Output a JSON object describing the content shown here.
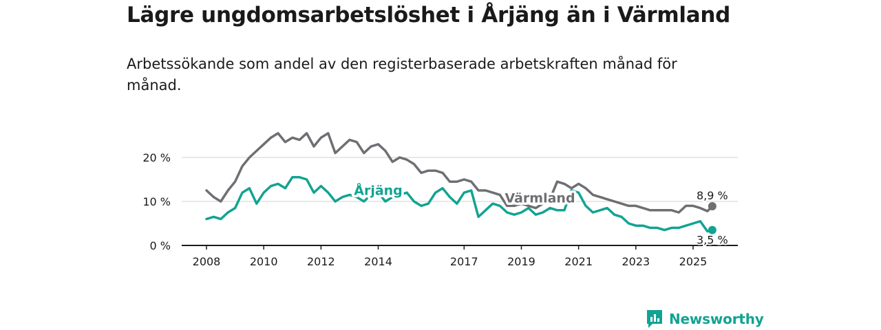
{
  "title": "Lägre ungdomsarbetslöshet i Årjäng än i Värmland",
  "subtitle": "Arbetssökande som andel av den registerbaserade arbetskraften månad för månad.",
  "brand": "Newsworthy",
  "colors": {
    "arjang": "#12a392",
    "varmland": "#6e6e73",
    "axis": "#1a1a1a",
    "grid": "#d9d9d9"
  },
  "chart_data": {
    "type": "line",
    "x_unit": "year",
    "xlim": [
      2007.0,
      2026.5
    ],
    "ylim": [
      0,
      25
    ],
    "y_ticks": [
      0,
      10,
      20
    ],
    "y_tick_labels": [
      "0 %",
      "10 %",
      "20 %"
    ],
    "x_ticks": [
      2008,
      2010,
      2012,
      2014,
      2017,
      2019,
      2021,
      2023,
      2025
    ],
    "grid": true,
    "legend": "inline",
    "series": [
      {
        "name": "Värmland",
        "color": "#6e6e73",
        "end_label": "8,9 %",
        "x": [
          2008.0,
          2008.25,
          2008.5,
          2008.75,
          2009.0,
          2009.25,
          2009.5,
          2009.75,
          2010.0,
          2010.25,
          2010.5,
          2010.75,
          2011.0,
          2011.25,
          2011.5,
          2011.75,
          2012.0,
          2012.25,
          2012.5,
          2012.75,
          2013.0,
          2013.25,
          2013.5,
          2013.75,
          2014.0,
          2014.25,
          2014.5,
          2014.75,
          2015.0,
          2015.25,
          2015.5,
          2015.75,
          2016.0,
          2016.25,
          2016.5,
          2016.75,
          2017.0,
          2017.25,
          2017.5,
          2017.75,
          2018.0,
          2018.25,
          2018.5,
          2018.75,
          2019.0,
          2019.25,
          2019.5,
          2019.75,
          2020.0,
          2020.25,
          2020.5,
          2020.75,
          2021.0,
          2021.25,
          2021.5,
          2021.75,
          2022.0,
          2022.25,
          2022.5,
          2022.75,
          2023.0,
          2023.25,
          2023.5,
          2023.75,
          2024.0,
          2024.25,
          2024.5,
          2024.75,
          2025.0,
          2025.25,
          2025.5,
          2025.67
        ],
        "y": [
          12.5,
          11.0,
          10.0,
          12.5,
          14.5,
          18.0,
          20.0,
          21.5,
          23.0,
          24.5,
          25.5,
          23.5,
          24.5,
          24.0,
          25.5,
          22.5,
          24.5,
          25.5,
          21.0,
          22.5,
          24.0,
          23.5,
          21.0,
          22.5,
          23.0,
          21.5,
          19.0,
          20.0,
          19.5,
          18.5,
          16.5,
          17.0,
          17.0,
          16.5,
          14.5,
          14.5,
          15.0,
          14.5,
          12.5,
          12.5,
          12.0,
          11.5,
          9.0,
          9.0,
          9.5,
          9.0,
          8.5,
          9.5,
          10.5,
          14.5,
          14.0,
          13.0,
          14.0,
          13.0,
          11.5,
          11.0,
          10.5,
          10.0,
          9.5,
          9.0,
          9.0,
          8.5,
          8.0,
          8.0,
          8.0,
          8.0,
          7.5,
          9.0,
          9.0,
          8.5,
          7.8,
          8.9
        ]
      },
      {
        "name": "Årjäng",
        "color": "#12a392",
        "end_label": "3,5 %",
        "x": [
          2008.0,
          2008.25,
          2008.5,
          2008.75,
          2009.0,
          2009.25,
          2009.5,
          2009.75,
          2010.0,
          2010.25,
          2010.5,
          2010.75,
          2011.0,
          2011.25,
          2011.5,
          2011.75,
          2012.0,
          2012.25,
          2012.5,
          2012.75,
          2013.0,
          2013.25,
          2013.5,
          2013.75,
          2014.0,
          2014.25,
          2014.5,
          2014.75,
          2015.0,
          2015.25,
          2015.5,
          2015.75,
          2016.0,
          2016.25,
          2016.5,
          2016.75,
          2017.0,
          2017.25,
          2017.5,
          2017.75,
          2018.0,
          2018.25,
          2018.5,
          2018.75,
          2019.0,
          2019.25,
          2019.5,
          2019.75,
          2020.0,
          2020.25,
          2020.5,
          2020.75,
          2021.0,
          2021.25,
          2021.5,
          2021.75,
          2022.0,
          2022.25,
          2022.5,
          2022.75,
          2023.0,
          2023.25,
          2023.5,
          2023.75,
          2024.0,
          2024.25,
          2024.5,
          2024.75,
          2025.0,
          2025.25,
          2025.5,
          2025.67
        ],
        "y": [
          6.0,
          6.5,
          6.0,
          7.5,
          8.5,
          12.0,
          13.0,
          9.5,
          12.0,
          13.5,
          14.0,
          13.0,
          15.5,
          15.5,
          15.0,
          12.0,
          13.5,
          12.0,
          10.0,
          11.0,
          11.5,
          11.0,
          10.0,
          11.5,
          12.0,
          10.0,
          11.0,
          11.5,
          12.0,
          10.0,
          9.0,
          9.5,
          12.0,
          13.0,
          11.0,
          9.5,
          12.0,
          12.5,
          6.5,
          8.0,
          9.5,
          9.0,
          7.5,
          7.0,
          7.5,
          8.5,
          7.0,
          7.5,
          8.5,
          8.0,
          8.0,
          12.5,
          12.0,
          9.0,
          7.5,
          8.0,
          8.5,
          7.0,
          6.5,
          5.0,
          4.5,
          4.5,
          4.0,
          4.0,
          3.5,
          4.0,
          4.0,
          4.5,
          5.0,
          5.5,
          3.2,
          3.5
        ]
      }
    ]
  }
}
